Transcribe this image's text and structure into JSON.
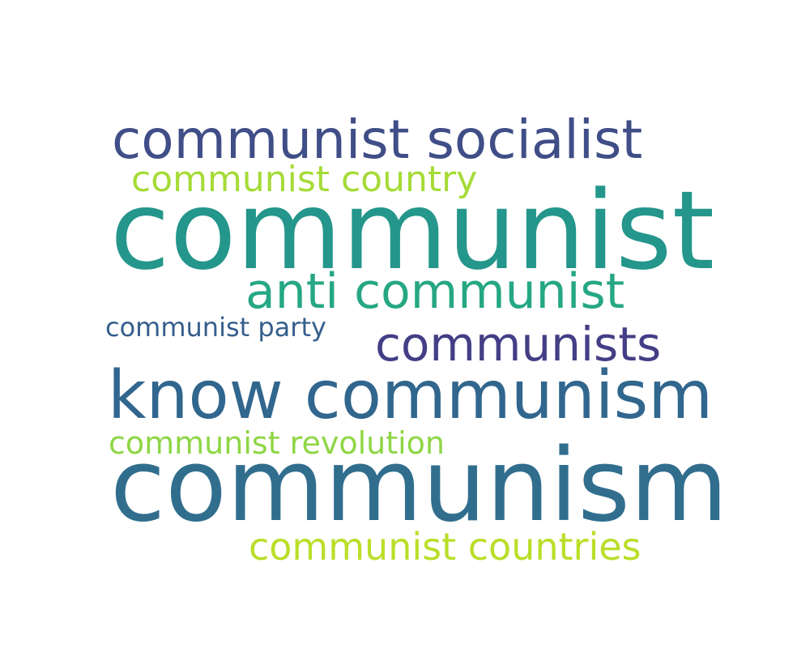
{
  "words": [
    {
      "text": "communist socialist",
      "color": "#404e88"
    },
    {
      "text": "communist country",
      "color": "#a5db36"
    },
    {
      "text": "communist",
      "color": "#24968b"
    },
    {
      "text": "anti communist",
      "color": "#26a784"
    },
    {
      "text": "communist party",
      "color": "#355f8d"
    },
    {
      "text": "communists",
      "color": "#433e85"
    },
    {
      "text": "know communism",
      "color": "#31668e"
    },
    {
      "text": "communist revolution",
      "color": "#8ed645"
    },
    {
      "text": "communism",
      "color": "#316e8e"
    },
    {
      "text": "communist countries",
      "color": "#bade28"
    }
  ]
}
